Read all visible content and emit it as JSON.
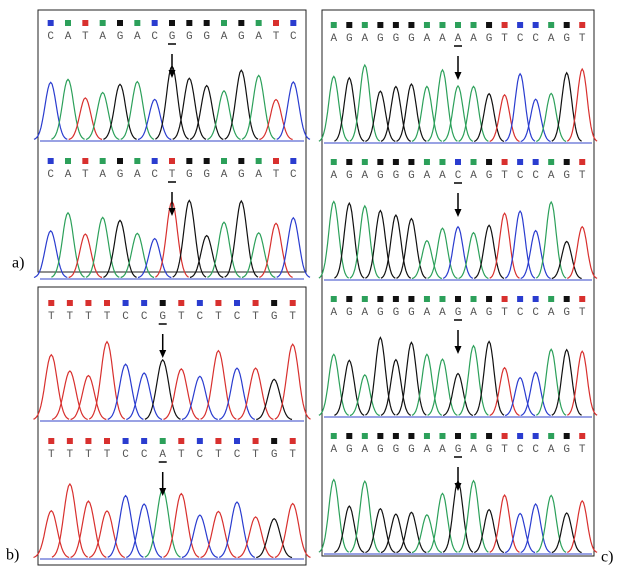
{
  "panels": [
    {
      "label": "a)",
      "traces": [
        {
          "bases": [
            "C",
            "A",
            "T",
            "A",
            "G",
            "A",
            "C",
            "G",
            "G",
            "G",
            "A",
            "G",
            "A",
            "T",
            "C"
          ],
          "underlined": 7
        },
        {
          "bases": [
            "C",
            "A",
            "T",
            "A",
            "G",
            "A",
            "C",
            "T",
            "G",
            "G",
            "A",
            "G",
            "A",
            "T",
            "C"
          ],
          "underlined": 7
        }
      ]
    },
    {
      "label": "b)",
      "traces": [
        {
          "bases": [
            "T",
            "T",
            "T",
            "T",
            "C",
            "C",
            "G",
            "T",
            "C",
            "T",
            "C",
            "T",
            "G",
            "T"
          ],
          "underlined": 6
        },
        {
          "bases": [
            "T",
            "T",
            "T",
            "T",
            "C",
            "C",
            "A",
            "T",
            "C",
            "T",
            "C",
            "T",
            "G",
            "T"
          ],
          "underlined": 6
        }
      ]
    },
    {
      "label": "c)",
      "traces": [
        {
          "bases": [
            "A",
            "G",
            "A",
            "G",
            "G",
            "G",
            "A",
            "A",
            "A",
            "A",
            "G",
            "T",
            "C",
            "C",
            "A",
            "G",
            "T"
          ],
          "underlined": 8
        },
        {
          "bases": [
            "A",
            "G",
            "A",
            "G",
            "G",
            "G",
            "A",
            "A",
            "C",
            "A",
            "G",
            "T",
            "C",
            "C",
            "A",
            "G",
            "T"
          ],
          "underlined": 8
        },
        {
          "bases": [
            "A",
            "G",
            "A",
            "G",
            "G",
            "G",
            "A",
            "A",
            "G",
            "A",
            "G",
            "T",
            "C",
            "C",
            "A",
            "G",
            "T"
          ],
          "underlined": 8
        },
        {
          "bases": [
            "A",
            "G",
            "A",
            "G",
            "G",
            "G",
            "A",
            "A",
            "G",
            "A",
            "G",
            "T",
            "C",
            "C",
            "A",
            "G",
            "T"
          ],
          "underlined": 8
        }
      ]
    }
  ]
}
